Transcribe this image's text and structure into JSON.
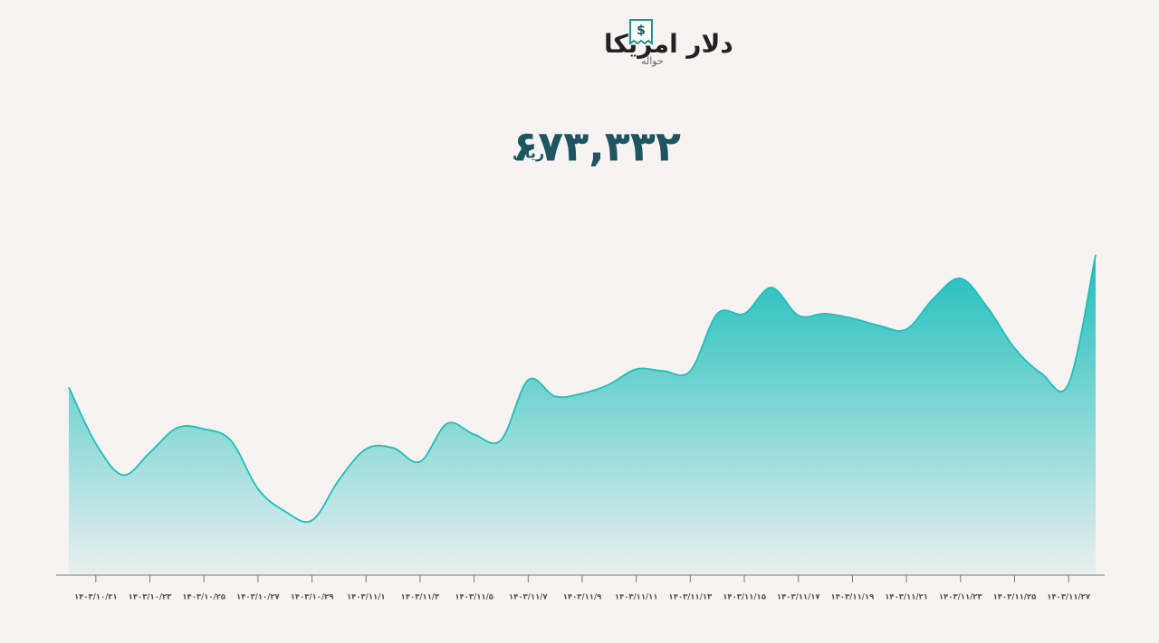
{
  "chart_data": {
    "type": "area",
    "title": "دلار امریکا",
    "subtitle": "حواله",
    "current": {
      "value": 673332,
      "label": "۶۷۳,۳۳۲"
    },
    "unit": "ریال",
    "color": "#21bdb9",
    "categories": [
      null,
      "۱۴۰۳/۱۰/۲۱",
      null,
      "۱۴۰۳/۱۰/۲۳",
      null,
      "۱۴۰۳/۱۰/۲۵",
      null,
      "۱۴۰۳/۱۰/۲۷",
      null,
      "۱۴۰۳/۱۰/۲۹",
      null,
      "۱۴۰۳/۱۱/۱",
      null,
      "۱۴۰۳/۱۱/۳",
      null,
      "۱۴۰۳/۱۱/۵",
      null,
      "۱۴۰۳/۱۱/۷",
      null,
      "۱۴۰۳/۱۱/۹",
      null,
      "۱۴۰۳/۱۱/۱۱",
      null,
      "۱۴۰۳/۱۱/۱۳",
      null,
      "۱۴۰۳/۱۱/۱۵",
      null,
      "۱۴۰۳/۱۱/۱۷",
      null,
      "۱۴۰۳/۱۱/۱۹",
      null,
      "۱۴۰۳/۱۱/۲۱",
      null,
      "۱۴۰۳/۱۱/۲۳",
      null,
      "۱۴۰۳/۱۱/۲۵",
      null,
      "۱۴۰۳/۱۱/۲۷",
      null
    ],
    "values": [
      636800,
      621300,
      612600,
      618800,
      625600,
      625300,
      622100,
      608800,
      602600,
      600100,
      611300,
      619800,
      620100,
      616300,
      626800,
      623800,
      622300,
      638800,
      634300,
      635100,
      637600,
      641800,
      641300,
      641300,
      657100,
      657100,
      664300,
      656600,
      657100,
      655800,
      653800,
      652800,
      661300,
      666800,
      658800,
      647600,
      640600,
      637800,
      673332
    ],
    "ylim": [
      585000,
      680000
    ]
  }
}
